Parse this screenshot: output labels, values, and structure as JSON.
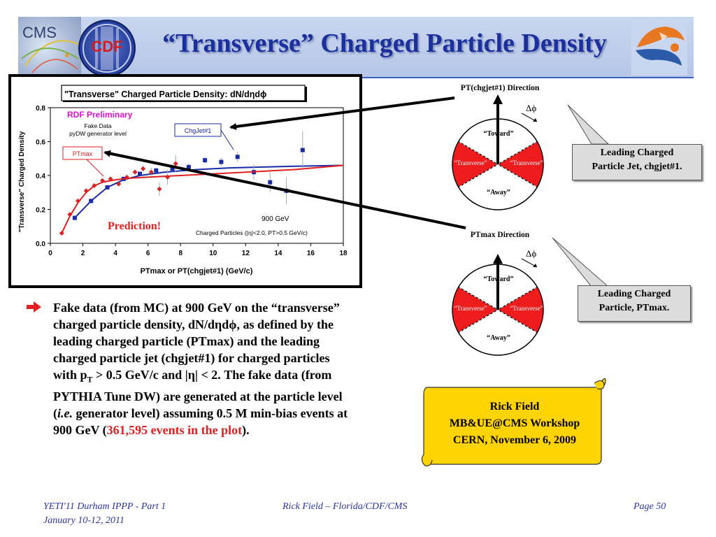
{
  "slide": {
    "title": "“Transverse” Charged Particle Density",
    "logos": {
      "cms": "CMS",
      "cdf": "CDF",
      "uf": "uf-gator-logo"
    }
  },
  "chart_data": {
    "type": "scatter",
    "title": "\"Transverse\" Charged Particle Density: dN/dηdϕ",
    "xlabel": "PTmax or PT(chgjet#1)  (GeV/c)",
    "ylabel": "\"Transverse\" Charged Density",
    "xlim": [
      0,
      18
    ],
    "ylim": [
      0,
      0.8
    ],
    "xticks": [
      "0",
      "2",
      "4",
      "6",
      "8",
      "10",
      "12",
      "14",
      "16",
      "18"
    ],
    "yticks": [
      "0.0",
      "0.2",
      "0.4",
      "0.6",
      "0.8"
    ],
    "grid": false,
    "annotations": {
      "preliminary": "RDF Preliminary",
      "fake_data": "Fake Data",
      "generator": "pyDW generator level",
      "energy": "900 GeV",
      "cuts": "Charged Particles (|η|<2.0, PT>0.5 GeV/c)",
      "prediction": "Prediction!"
    },
    "series": [
      {
        "name": "ChgJet#1",
        "color": "#1a2ba8",
        "marker": "square",
        "x": [
          1.5,
          2.5,
          3.5,
          4.5,
          5.5,
          6.5,
          7.5,
          8.5,
          9.5,
          10.5,
          11.5,
          12.5,
          13.5,
          14.5,
          15.5
        ],
        "y": [
          0.15,
          0.25,
          0.33,
          0.38,
          0.41,
          0.43,
          0.44,
          0.45,
          0.49,
          0.48,
          0.51,
          0.42,
          0.36,
          0.31,
          0.55
        ],
        "yerr": [
          0.005,
          0.005,
          0.006,
          0.008,
          0.01,
          0.012,
          0.015,
          0.02,
          0.02,
          0.025,
          0.03,
          0.045,
          0.06,
          0.08,
          0.11
        ],
        "curve_x": [
          1.5,
          2.5,
          3.5,
          4.5,
          5.5,
          7,
          9,
          11,
          13,
          15,
          18
        ],
        "curve_y": [
          0.15,
          0.25,
          0.33,
          0.375,
          0.4,
          0.42,
          0.435,
          0.445,
          0.45,
          0.455,
          0.46
        ]
      },
      {
        "name": "PTmax",
        "color": "#e02020",
        "marker": "diamond",
        "x": [
          0.7,
          1.2,
          1.7,
          2.2,
          2.7,
          3.2,
          3.7,
          4.2,
          4.7,
          5.2,
          5.7,
          6.2,
          6.7,
          7.2,
          7.7
        ],
        "y": [
          0.06,
          0.17,
          0.25,
          0.31,
          0.34,
          0.37,
          0.38,
          0.35,
          0.39,
          0.42,
          0.44,
          0.42,
          0.32,
          0.39,
          0.47
        ],
        "yerr": [
          0.003,
          0.004,
          0.005,
          0.006,
          0.007,
          0.008,
          0.009,
          0.01,
          0.012,
          0.015,
          0.018,
          0.025,
          0.04,
          0.045,
          0.05
        ],
        "curve_x": [
          0.7,
          1.2,
          1.7,
          2.2,
          2.7,
          3.2,
          4,
          5,
          6,
          8,
          10,
          12,
          15,
          18
        ],
        "curve_y": [
          0.06,
          0.16,
          0.24,
          0.3,
          0.34,
          0.36,
          0.375,
          0.385,
          0.39,
          0.4,
          0.41,
          0.42,
          0.435,
          0.46
        ]
      }
    ],
    "labels": {
      "chgjet": "ChgJet#1",
      "ptmax": "PTmax"
    }
  },
  "diagrams": {
    "top": {
      "direction_label": "PT(chgjet#1) Direction",
      "dphi": "Δϕ",
      "toward": "“Toward”",
      "transverse_left": "“Transverse”",
      "transverse_right": "“Transverse”",
      "away": "“Away”"
    },
    "bottom": {
      "direction_label": "PTmax Direction",
      "dphi": "Δϕ",
      "toward": "“Toward”",
      "transverse_left": "“Transverse”",
      "transverse_right": "“Transverse”",
      "away": "“Away”"
    }
  },
  "callouts": {
    "top": [
      "Leading Charged",
      "Particle Jet, chgjet#1."
    ],
    "bottom": [
      "Leading Charged",
      "Particle, PTmax."
    ]
  },
  "bullet": {
    "part1": "Fake data (from MC) at 900 GeV on the “transverse” charged particle density, dN/dηdϕ, as defined by the leading charged particle (PTmax) and the leading charged particle jet (chgjet#1) for charged particles with p",
    "sub": "T",
    "part2": " > 0.5 GeV/c and |η| < 2. The fake data (from PYTHIA Tune DW) are generated at the particle level (",
    "italic": "i.e.",
    "part3": " generator level) assuming 0.5 M min-bias events at 900 GeV (",
    "highlight": "361,595 events in the plot",
    "part4": ")."
  },
  "scroll": {
    "line1": "Rick Field",
    "line2": "MB&UE@CMS Workshop",
    "line3": "CERN, November 6, 2009"
  },
  "footer": {
    "left1": "YETI'11 Durham IPPP - Part 1",
    "left2": "January 10-12, 2011",
    "center": "Rick Field – Florida/CDF/CMS",
    "right": "Page 50"
  }
}
